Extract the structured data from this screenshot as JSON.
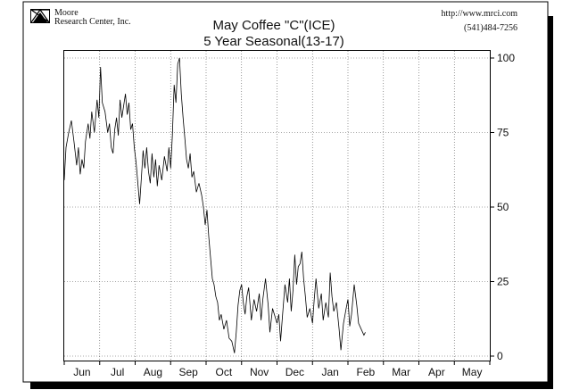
{
  "header": {
    "company_line1": "Moore",
    "company_line2": "Research Center, Inc.",
    "website": "http://www.mrci.com",
    "phone": "(541)484-7256"
  },
  "chart_data": {
    "type": "line",
    "title": "May Coffee \"C\"(ICE)",
    "subtitle": "5 Year Seasonal(13-17)",
    "xlabel": "",
    "ylabel": "",
    "x_tick_labels": [
      "Jun",
      "Jul",
      "Aug",
      "Sep",
      "Oct",
      "Nov",
      "Dec",
      "Jan",
      "Feb",
      "Mar",
      "Apr",
      "May"
    ],
    "y_ticks": [
      0,
      25,
      50,
      75,
      100
    ],
    "ylim": [
      0,
      100
    ],
    "y_axis_position": "right",
    "grid": true,
    "series": [
      {
        "color": "#000000",
        "points": [
          [
            0.0,
            59
          ],
          [
            0.1,
            70
          ],
          [
            0.25,
            75
          ],
          [
            0.4,
            79
          ],
          [
            0.55,
            72
          ],
          [
            0.7,
            64
          ],
          [
            0.8,
            70
          ],
          [
            0.9,
            61
          ],
          [
            1.0,
            66
          ],
          [
            1.1,
            63
          ],
          [
            1.2,
            72
          ],
          [
            1.35,
            78
          ],
          [
            1.45,
            73
          ],
          [
            1.55,
            82
          ],
          [
            1.7,
            75
          ],
          [
            1.85,
            86
          ],
          [
            1.95,
            80
          ],
          [
            2.05,
            97
          ],
          [
            2.15,
            85
          ],
          [
            2.3,
            82
          ],
          [
            2.45,
            75
          ],
          [
            2.55,
            78
          ],
          [
            2.65,
            70
          ],
          [
            2.75,
            68
          ],
          [
            2.85,
            76
          ],
          [
            2.95,
            80
          ],
          [
            3.05,
            74
          ],
          [
            3.15,
            86
          ],
          [
            3.25,
            80
          ],
          [
            3.35,
            84
          ],
          [
            3.45,
            88
          ],
          [
            3.55,
            81
          ],
          [
            3.65,
            85
          ],
          [
            3.75,
            76
          ],
          [
            3.85,
            78
          ],
          [
            3.95,
            70
          ],
          [
            4.05,
            65
          ],
          [
            4.15,
            58
          ],
          [
            4.25,
            51
          ],
          [
            4.35,
            60
          ],
          [
            4.45,
            69
          ],
          [
            4.55,
            63
          ],
          [
            4.65,
            70
          ],
          [
            4.75,
            62
          ],
          [
            4.85,
            58
          ],
          [
            4.95,
            68
          ],
          [
            5.05,
            60
          ],
          [
            5.15,
            66
          ],
          [
            5.25,
            57
          ],
          [
            5.35,
            64
          ],
          [
            5.5,
            59
          ],
          [
            5.65,
            67
          ],
          [
            5.8,
            62
          ],
          [
            5.9,
            70
          ],
          [
            6.0,
            63
          ],
          [
            6.1,
            74
          ],
          [
            6.2,
            91
          ],
          [
            6.3,
            85
          ],
          [
            6.4,
            98
          ],
          [
            6.5,
            100
          ],
          [
            6.6,
            88
          ],
          [
            6.7,
            80
          ],
          [
            6.8,
            73
          ],
          [
            6.9,
            66
          ],
          [
            7.0,
            63
          ],
          [
            7.1,
            68
          ],
          [
            7.2,
            60
          ],
          [
            7.3,
            62
          ],
          [
            7.45,
            55
          ],
          [
            7.6,
            58
          ],
          [
            7.75,
            54
          ],
          [
            7.85,
            50
          ],
          [
            7.95,
            44
          ],
          [
            8.05,
            49
          ],
          [
            8.15,
            40
          ],
          [
            8.25,
            33
          ],
          [
            8.35,
            26
          ],
          [
            8.45,
            24
          ],
          [
            8.55,
            20
          ],
          [
            8.65,
            18
          ],
          [
            8.75,
            12
          ],
          [
            8.85,
            14
          ],
          [
            9.0,
            9
          ],
          [
            9.15,
            12
          ],
          [
            9.3,
            6
          ],
          [
            9.45,
            5
          ],
          [
            9.6,
            1
          ],
          [
            9.7,
            8
          ],
          [
            9.8,
            17
          ],
          [
            9.9,
            22
          ],
          [
            10.0,
            24
          ],
          [
            10.1,
            18
          ],
          [
            10.2,
            14
          ],
          [
            10.3,
            20
          ],
          [
            10.4,
            23
          ],
          [
            10.55,
            12
          ],
          [
            10.7,
            19
          ],
          [
            10.85,
            15
          ],
          [
            11.0,
            21
          ],
          [
            11.1,
            12
          ],
          [
            11.2,
            19
          ],
          [
            11.35,
            26
          ],
          [
            11.5,
            17
          ],
          [
            11.6,
            8
          ],
          [
            11.75,
            16
          ],
          [
            11.9,
            13
          ],
          [
            12.0,
            11
          ],
          [
            12.1,
            14
          ],
          [
            12.2,
            5
          ],
          [
            12.3,
            13
          ],
          [
            12.45,
            24
          ],
          [
            12.6,
            18
          ],
          [
            12.7,
            26
          ],
          [
            12.8,
            15
          ],
          [
            12.9,
            22
          ],
          [
            13.0,
            34
          ],
          [
            13.1,
            24
          ],
          [
            13.2,
            30
          ],
          [
            13.3,
            31
          ],
          [
            13.4,
            35
          ],
          [
            13.5,
            26
          ],
          [
            13.6,
            20
          ],
          [
            13.7,
            13
          ],
          [
            13.85,
            16
          ],
          [
            14.0,
            11
          ],
          [
            14.1,
            19
          ],
          [
            14.2,
            26
          ],
          [
            14.35,
            16
          ],
          [
            14.5,
            21
          ],
          [
            14.6,
            12
          ],
          [
            14.75,
            18
          ],
          [
            14.9,
            13
          ],
          [
            15.0,
            28
          ],
          [
            15.1,
            20
          ],
          [
            15.2,
            15
          ],
          [
            15.35,
            18
          ],
          [
            15.5,
            9
          ],
          [
            15.6,
            2
          ],
          [
            15.75,
            11
          ],
          [
            15.9,
            16
          ],
          [
            16.0,
            19
          ],
          [
            16.1,
            10
          ],
          [
            16.2,
            14
          ],
          [
            16.35,
            24
          ],
          [
            16.5,
            17
          ],
          [
            16.6,
            11
          ],
          [
            16.75,
            9
          ],
          [
            16.9,
            7
          ],
          [
            16.98,
            8
          ]
        ]
      }
    ]
  }
}
